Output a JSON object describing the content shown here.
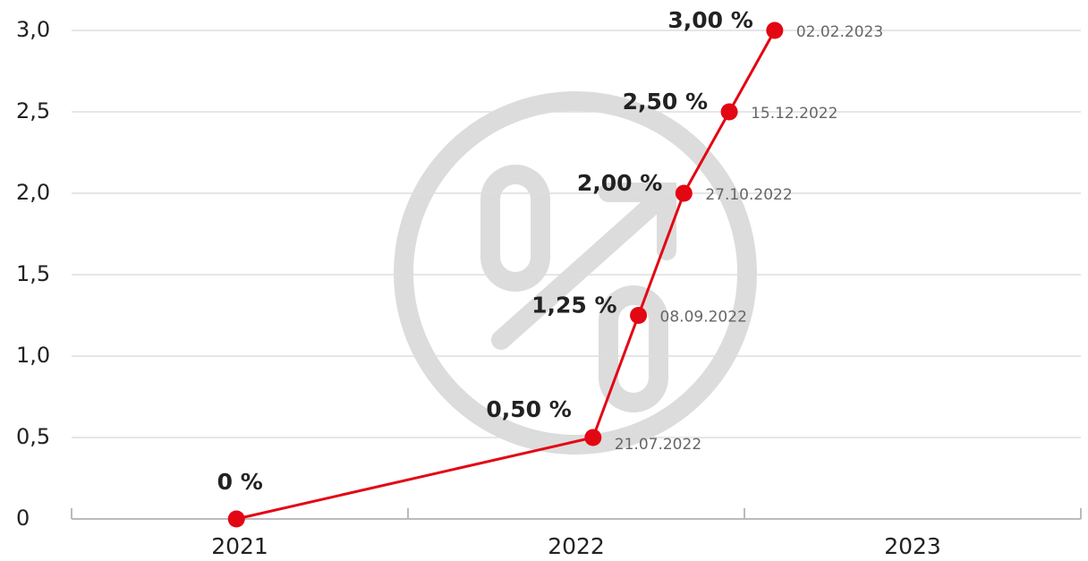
{
  "chart_data": {
    "type": "line",
    "x": [
      2021.49,
      2022.55,
      2022.685,
      2022.82,
      2022.955,
      2023.09
    ],
    "series": [
      {
        "name": null,
        "color": "#e30613",
        "values": [
          0,
          0.5,
          1.25,
          2.0,
          2.5,
          3.0
        ],
        "value_labels": [
          "0 %",
          "0,50 %",
          "1,25 %",
          "2,00 %",
          "2,50 %",
          "3,00 %"
        ],
        "date_labels": [
          null,
          "21.07.2022",
          "08.09.2022",
          "27.10.2022",
          "15.12.2022",
          "02.02.2023"
        ]
      }
    ],
    "xlim": [
      2021,
      2024
    ],
    "xticks": [
      {
        "value": 2021.5,
        "label": "2021"
      },
      {
        "value": 2022.5,
        "label": "2022"
      },
      {
        "value": 2023.5,
        "label": "2023"
      }
    ],
    "ylim": [
      0,
      3.0
    ],
    "yticks": [
      0,
      {
        "value": 0.5,
        "label": "0,5"
      },
      {
        "value": 1.0,
        "label": "1,0"
      },
      {
        "value": 1.5,
        "label": "1,5"
      },
      {
        "value": 2.0,
        "label": "2,0"
      },
      {
        "value": 2.5,
        "label": "2,5"
      },
      {
        "value": 3.0,
        "label": "3,0"
      }
    ],
    "grid": true
  }
}
